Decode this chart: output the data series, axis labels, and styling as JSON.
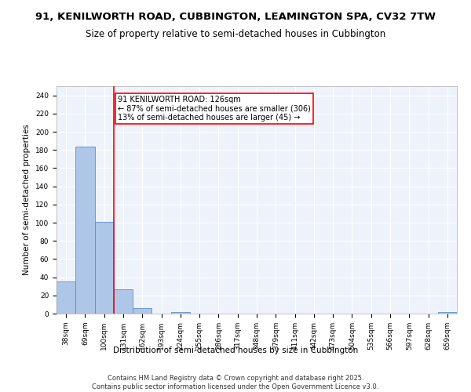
{
  "title_line1": "91, KENILWORTH ROAD, CUBBINGTON, LEAMINGTON SPA, CV32 7TW",
  "title_line2": "Size of property relative to semi-detached houses in Cubbington",
  "xlabel": "Distribution of semi-detached houses by size in Cubbington",
  "ylabel": "Number of semi-detached properties",
  "categories": [
    "38sqm",
    "69sqm",
    "100sqm",
    "131sqm",
    "162sqm",
    "193sqm",
    "224sqm",
    "255sqm",
    "286sqm",
    "317sqm",
    "348sqm",
    "379sqm",
    "411sqm",
    "442sqm",
    "473sqm",
    "504sqm",
    "535sqm",
    "566sqm",
    "597sqm",
    "628sqm",
    "659sqm"
  ],
  "values": [
    35,
    184,
    101,
    27,
    6,
    0,
    2,
    0,
    0,
    0,
    0,
    0,
    0,
    0,
    0,
    0,
    0,
    0,
    0,
    0,
    2
  ],
  "bar_color": "#aec6e8",
  "bar_edge_color": "#5b8fc9",
  "vline_x_idx": 2,
  "vline_color": "red",
  "annotation_box_text": "91 KENILWORTH ROAD: 126sqm\n← 87% of semi-detached houses are smaller (306)\n13% of semi-detached houses are larger (45) →",
  "ylim": [
    0,
    250
  ],
  "yticks": [
    0,
    20,
    40,
    60,
    80,
    100,
    120,
    140,
    160,
    180,
    200,
    220,
    240
  ],
  "background_color": "#eef3fb",
  "grid_color": "#ffffff",
  "footer": "Contains HM Land Registry data © Crown copyright and database right 2025.\nContains public sector information licensed under the Open Government Licence v3.0.",
  "title_fontsize": 9.5,
  "subtitle_fontsize": 8.5,
  "axis_label_fontsize": 7.5,
  "tick_fontsize": 6.5,
  "annotation_fontsize": 7,
  "footer_fontsize": 6
}
